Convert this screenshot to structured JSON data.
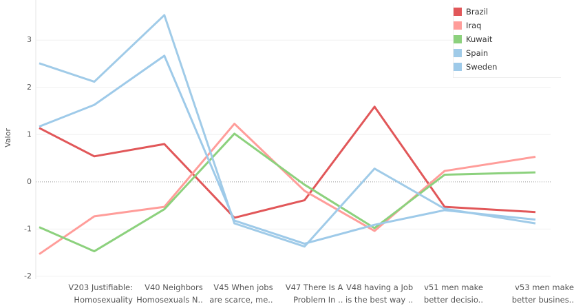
{
  "chart_data": {
    "type": "line",
    "y_label": "Valor",
    "categories": [
      null,
      "V203 Justifiable: Homosexuality",
      "V40 Neighbors Homosexuals N..",
      "V45 When jobs are scarce, me..",
      "V47 There Is A Problem In ..",
      "V48 having a Job is the best way ..",
      "v51 men make better decisio..",
      "v53 men make better busines.."
    ],
    "series": [
      {
        "name": "Brazil",
        "color": "#e15759",
        "values": [
          1.14,
          0.54,
          0.8,
          -0.76,
          -0.39,
          1.59,
          -0.53,
          -0.64
        ]
      },
      {
        "name": "Iraq",
        "color": "#ff9d9a",
        "values": [
          -1.53,
          -0.73,
          -0.53,
          1.23,
          -0.19,
          -1.04,
          0.23,
          0.53
        ]
      },
      {
        "name": "Kuwait",
        "color": "#8cd17d",
        "values": [
          -0.96,
          -1.47,
          -0.58,
          1.02,
          -0.06,
          -0.98,
          0.15,
          0.2
        ]
      },
      {
        "name": "Spain",
        "color": "#a0cbe8",
        "values": [
          2.51,
          2.12,
          3.53,
          -0.88,
          -1.37,
          0.28,
          -0.57,
          -0.88
        ]
      },
      {
        "name": "Sweden",
        "color": "#9ecae9",
        "values": [
          1.17,
          1.63,
          2.67,
          -0.82,
          -1.31,
          -0.91,
          -0.6,
          -0.8
        ]
      }
    ],
    "ylim": [
      -2.06,
      3.85
    ],
    "yticks": [
      -2,
      -1,
      0,
      1,
      2,
      3
    ],
    "grid": true
  }
}
